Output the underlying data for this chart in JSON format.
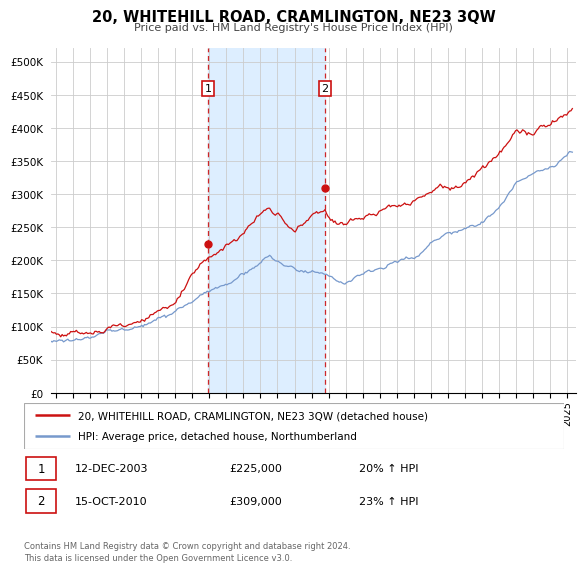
{
  "title": "20, WHITEHILL ROAD, CRAMLINGTON, NE23 3QW",
  "subtitle": "Price paid vs. HM Land Registry's House Price Index (HPI)",
  "ylabel_ticks": [
    "£0",
    "£50K",
    "£100K",
    "£150K",
    "£200K",
    "£250K",
    "£300K",
    "£350K",
    "£400K",
    "£450K",
    "£500K"
  ],
  "ytick_values": [
    0,
    50000,
    100000,
    150000,
    200000,
    250000,
    300000,
    350000,
    400000,
    450000,
    500000
  ],
  "ylim": [
    0,
    520000
  ],
  "xlim_start": 1994.7,
  "xlim_end": 2025.5,
  "hpi_color": "#7799cc",
  "price_color": "#cc1111",
  "sale1_date": 2003.95,
  "sale1_price": 225000,
  "sale2_date": 2010.79,
  "sale2_price": 309000,
  "sale1_display": "12-DEC-2003",
  "sale1_amount": "£225,000",
  "sale1_hpi": "20% ↑ HPI",
  "sale2_display": "15-OCT-2010",
  "sale2_amount": "£309,000",
  "sale2_hpi": "23% ↑ HPI",
  "legend_line1": "20, WHITEHILL ROAD, CRAMLINGTON, NE23 3QW (detached house)",
  "legend_line2": "HPI: Average price, detached house, Northumberland",
  "footnote": "Contains HM Land Registry data © Crown copyright and database right 2024.\nThis data is licensed under the Open Government Licence v3.0.",
  "background_color": "#ffffff",
  "shade_color": "#ddeeff",
  "grid_color": "#cccccc",
  "badge_color": "#cc1111"
}
